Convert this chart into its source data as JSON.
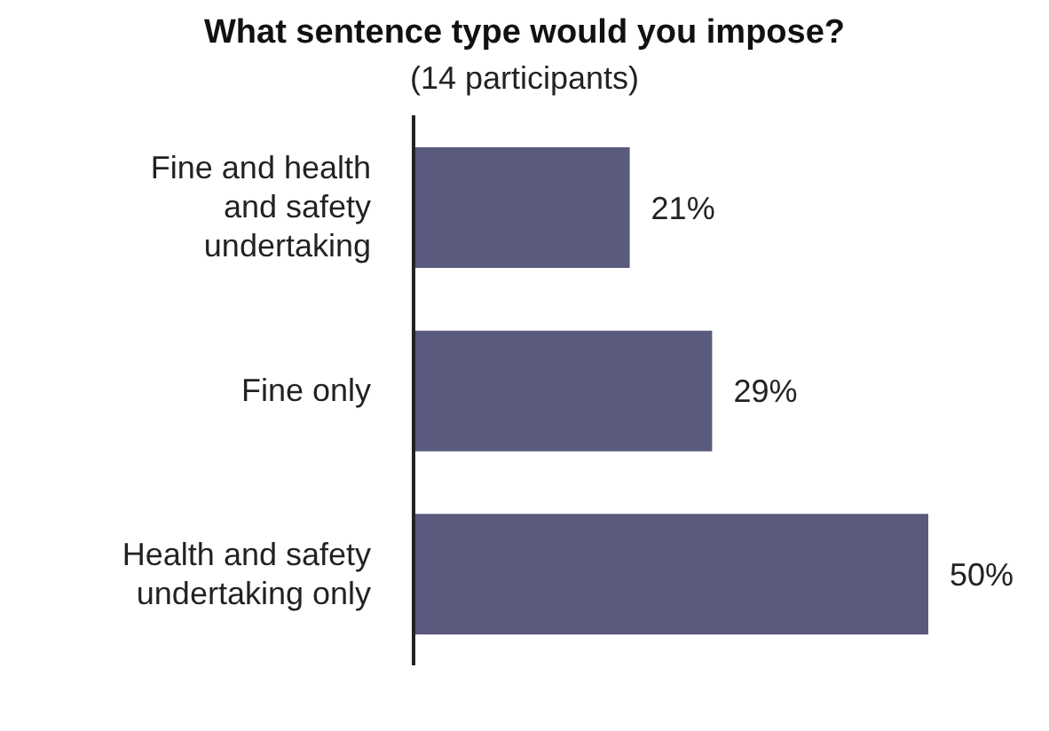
{
  "chart_data": {
    "type": "bar",
    "orientation": "horizontal",
    "title": "What sentence type would you impose?",
    "subtitle": "(14 participants)",
    "categories": [
      "Fine and health and safety undertaking",
      "Fine only",
      "Health and safety undertaking only"
    ],
    "values": [
      21,
      29,
      50
    ],
    "value_labels": [
      "21%",
      "29%",
      "50%"
    ],
    "color": "#5a5a7e",
    "grid": false,
    "legend": false
  }
}
